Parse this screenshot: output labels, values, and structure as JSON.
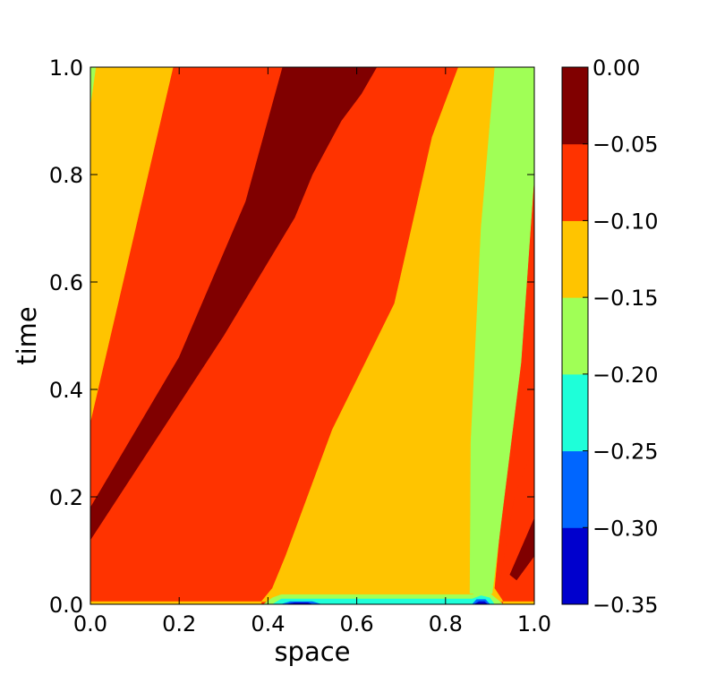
{
  "chart_data": {
    "type": "contourf",
    "title": "",
    "xlabel": "space",
    "ylabel": "time",
    "xlim": [
      0.0,
      1.0
    ],
    "ylim": [
      0.0,
      1.0
    ],
    "xticks": [
      "0.0",
      "0.2",
      "0.4",
      "0.6",
      "0.8",
      "1.0"
    ],
    "yticks": [
      "0.0",
      "0.2",
      "0.4",
      "0.6",
      "0.8",
      "1.0"
    ],
    "grid": false,
    "colorbar": {
      "levels": [
        -0.35,
        -0.3,
        -0.25,
        -0.2,
        -0.15,
        -0.1,
        -0.05,
        0.0
      ],
      "tick_labels": [
        "0.00",
        "−0.05",
        "−0.10",
        "−0.15",
        "−0.20",
        "−0.25",
        "−0.30",
        "−0.35"
      ],
      "colors": [
        "#0000cd",
        "#0066ff",
        "#1effd9",
        "#a0ff56",
        "#ffc400",
        "#ff3300",
        "#800000"
      ]
    },
    "regions": [
      {
        "band": 5,
        "points": [
          [
            0,
            0
          ],
          [
            1,
            0
          ],
          [
            1,
            1
          ],
          [
            0,
            1
          ]
        ]
      },
      {
        "band": 4,
        "points": [
          [
            0,
            1
          ],
          [
            0.186,
            1
          ],
          [
            0,
            0.34
          ]
        ]
      },
      {
        "band": 3,
        "points": [
          [
            0,
            1
          ],
          [
            0.012,
            1
          ],
          [
            0,
            0.93
          ]
        ]
      },
      {
        "band": 6,
        "points": [
          [
            0.433,
            1
          ],
          [
            0.645,
            1
          ],
          [
            0.61,
            0.95
          ],
          [
            0.565,
            0.9
          ],
          [
            0.5,
            0.8
          ],
          [
            0.46,
            0.72
          ],
          [
            0.3,
            0.5
          ],
          [
            0,
            0.12
          ],
          [
            0,
            0.18
          ],
          [
            0.2,
            0.46
          ],
          [
            0.35,
            0.75
          ]
        ]
      },
      {
        "band": 4,
        "points": [
          [
            0.829,
            1
          ],
          [
            0.77,
            0.87
          ],
          [
            0.685,
            0.56
          ],
          [
            0.545,
            0.325
          ],
          [
            0.44,
            0.09
          ],
          [
            0.41,
            0.03
          ],
          [
            0.385,
            0.005
          ],
          [
            0.93,
            0.005
          ],
          [
            0.91,
            0.03
          ],
          [
            0.94,
            0.3
          ],
          [
            1,
            0.8
          ],
          [
            1,
            1
          ]
        ]
      },
      {
        "band": 3,
        "points": [
          [
            0.911,
            1
          ],
          [
            1,
            1
          ],
          [
            1,
            0.8
          ],
          [
            0.97,
            0.45
          ],
          [
            0.905,
            0.02
          ],
          [
            0.855,
            0.02
          ],
          [
            0.857,
            0.3
          ],
          [
            0.88,
            0.7
          ]
        ]
      },
      {
        "band": 5,
        "points": [
          [
            1,
            0.297
          ],
          [
            1,
            0.005
          ],
          [
            0.93,
            0.005
          ],
          [
            0.92,
            0.03
          ],
          [
            0.955,
            0.2
          ]
        ]
      },
      {
        "band": 6,
        "points": [
          [
            1,
            0.16
          ],
          [
            1,
            0.09
          ],
          [
            0.96,
            0.045
          ],
          [
            0.945,
            0.055
          ]
        ]
      },
      {
        "band": 4,
        "points": [
          [
            0,
            0
          ],
          [
            0.385,
            0
          ],
          [
            0.385,
            0.005
          ],
          [
            0,
            0.005
          ]
        ]
      },
      {
        "band": 4,
        "points": [
          [
            0.93,
            0
          ],
          [
            1,
            0
          ],
          [
            1,
            0.005
          ],
          [
            0.93,
            0.005
          ]
        ]
      },
      {
        "band": 3,
        "points": [
          [
            0.39,
            0
          ],
          [
            0.41,
            0.012
          ],
          [
            0.43,
            0.018
          ],
          [
            0.86,
            0.018
          ],
          [
            0.88,
            0.024
          ],
          [
            0.9,
            0.02
          ],
          [
            0.93,
            0
          ]
        ]
      },
      {
        "band": 2,
        "points": [
          [
            0.41,
            0
          ],
          [
            0.43,
            0.01
          ],
          [
            0.86,
            0.01
          ],
          [
            0.88,
            0.016
          ],
          [
            0.9,
            0.012
          ],
          [
            0.91,
            0
          ]
        ]
      },
      {
        "band": 1,
        "points": [
          [
            0.43,
            0
          ],
          [
            0.45,
            0.005
          ],
          [
            0.5,
            0.005
          ],
          [
            0.52,
            0
          ],
          [
            0.86,
            0
          ],
          [
            0.87,
            0.009
          ],
          [
            0.89,
            0.009
          ],
          [
            0.9,
            0
          ]
        ]
      },
      {
        "band": 0,
        "points": [
          [
            0.44,
            0
          ],
          [
            0.46,
            0.003
          ],
          [
            0.49,
            0.003
          ],
          [
            0.5,
            0
          ],
          [
            0.865,
            0
          ],
          [
            0.875,
            0.005
          ],
          [
            0.888,
            0.005
          ],
          [
            0.895,
            0
          ]
        ]
      }
    ]
  }
}
